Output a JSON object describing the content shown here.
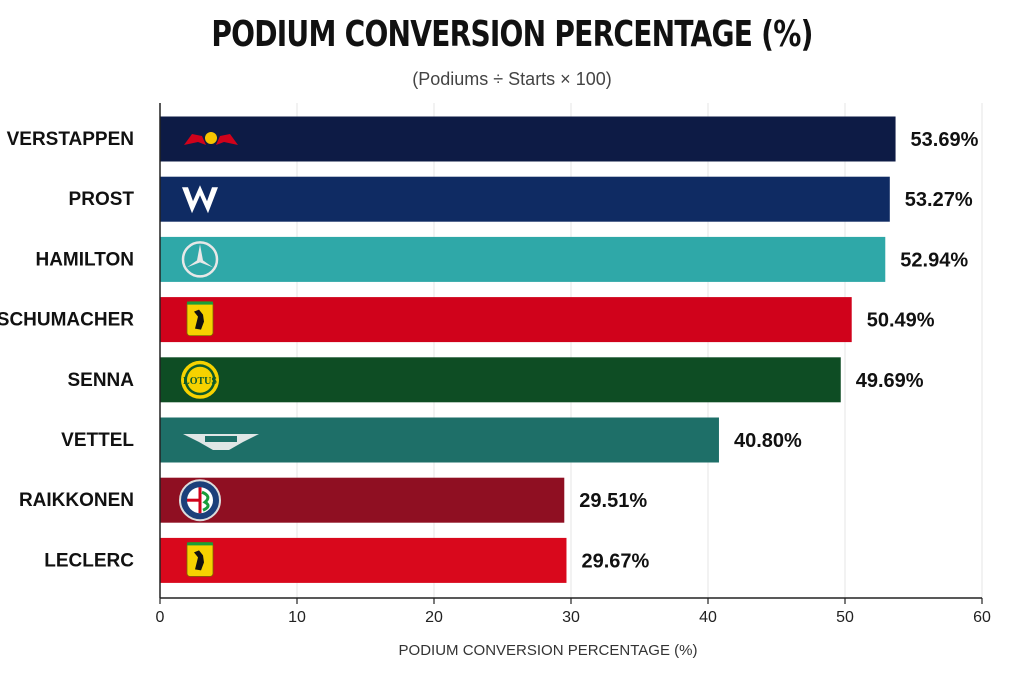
{
  "chart_data": {
    "type": "bar",
    "orientation": "horizontal",
    "title": "PODIUM CONVERSION PERCENTAGE (%)",
    "subtitle": "(Podiums ÷ Starts × 100)",
    "xlabel": "PODIUM CONVERSION PERCENTAGE (%)",
    "ylabel": "",
    "xlim": [
      0,
      60
    ],
    "xticks": [
      "0",
      "10",
      "20",
      "30",
      "40",
      "50",
      "60"
    ],
    "grid": true,
    "categories": [
      "VERSTAPPEN",
      "PROST",
      "HAMILTON",
      "SCHUMACHER",
      "SENNA",
      "VETTEL",
      "RAIKKONEN",
      "LECLERC"
    ],
    "values": [
      53.69,
      53.27,
      52.94,
      50.49,
      49.69,
      40.8,
      29.51,
      29.67
    ],
    "value_labels": [
      "53.69%",
      "53.27%",
      "52.94%",
      "50.49%",
      "49.69%",
      "40.80%",
      "29.51%",
      "29.67%"
    ],
    "colors": [
      "#0d1b45",
      "#0f2b63",
      "#2fa8a8",
      "#d0021b",
      "#0e4d24",
      "#1e6f68",
      "#8f0f22",
      "#d9081c"
    ],
    "logos": [
      "red-bull-logo-icon",
      "williams-logo-icon",
      "mercedes-logo-icon",
      "ferrari-logo-icon",
      "lotus-logo-icon",
      "aston-martin-logo-icon",
      "alfa-romeo-logo-icon",
      "ferrari-logo-icon"
    ]
  }
}
